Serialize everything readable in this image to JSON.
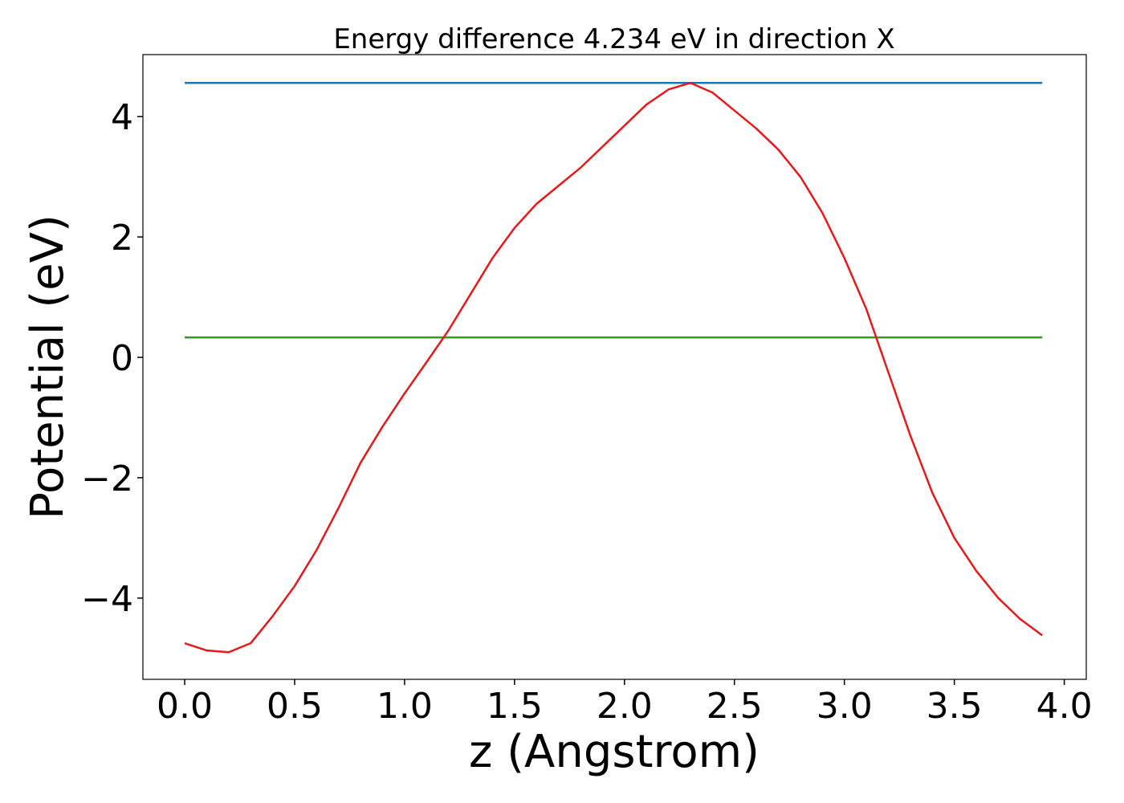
{
  "chart_data": {
    "type": "line",
    "title": "Energy difference 4.234 eV in direction X",
    "xlabel": "z (Angstrom)",
    "ylabel": "Potential (eV)",
    "xlim": [
      -0.19,
      4.1
    ],
    "ylim": [
      -5.35,
      5.03
    ],
    "xticks": [
      {
        "value": 0,
        "label": "0.0"
      },
      {
        "value": 0.5,
        "label": "0.5"
      },
      {
        "value": 1,
        "label": "1.0"
      },
      {
        "value": 1.5,
        "label": "1.5"
      },
      {
        "value": 2,
        "label": "2.0"
      },
      {
        "value": 2.5,
        "label": "2.5"
      },
      {
        "value": 3,
        "label": "3.0"
      },
      {
        "value": 3.5,
        "label": "3.5"
      },
      {
        "value": 4,
        "label": "4.0"
      }
    ],
    "yticks": [
      {
        "value": -4,
        "label": "−4"
      },
      {
        "value": -2,
        "label": "−2"
      },
      0,
      2,
      4
    ],
    "grid": false,
    "series": [
      {
        "color": "#1f77b4",
        "x": [
          0,
          3.9
        ],
        "values": [
          4.56,
          4.56
        ]
      },
      {
        "color": "#2ca02c",
        "x": [
          0,
          3.9
        ],
        "values": [
          0.33,
          0.33
        ]
      },
      {
        "color": "#e41a1c",
        "x": [
          0,
          0.1,
          0.2,
          0.3,
          0.4,
          0.5,
          0.6,
          0.7,
          0.8,
          0.9,
          1.0,
          1.1,
          1.2,
          1.3,
          1.4,
          1.5,
          1.6,
          1.7,
          1.8,
          1.9,
          2.0,
          2.1,
          2.2,
          2.3,
          2.4,
          2.5,
          2.6,
          2.7,
          2.8,
          2.9,
          3.0,
          3.1,
          3.2,
          3.3,
          3.4,
          3.5,
          3.6,
          3.7,
          3.8,
          3.9
        ],
        "values": [
          -4.75,
          -4.87,
          -4.9,
          -4.75,
          -4.3,
          -3.8,
          -3.2,
          -2.5,
          -1.75,
          -1.15,
          -0.6,
          -0.08,
          0.45,
          1.05,
          1.65,
          2.15,
          2.55,
          2.85,
          3.15,
          3.5,
          3.85,
          4.2,
          4.45,
          4.56,
          4.4,
          4.1,
          3.8,
          3.45,
          3.0,
          2.4,
          1.65,
          0.8,
          -0.25,
          -1.3,
          -2.25,
          -3.0,
          -3.55,
          -4.0,
          -4.35,
          -4.62
        ]
      }
    ]
  }
}
